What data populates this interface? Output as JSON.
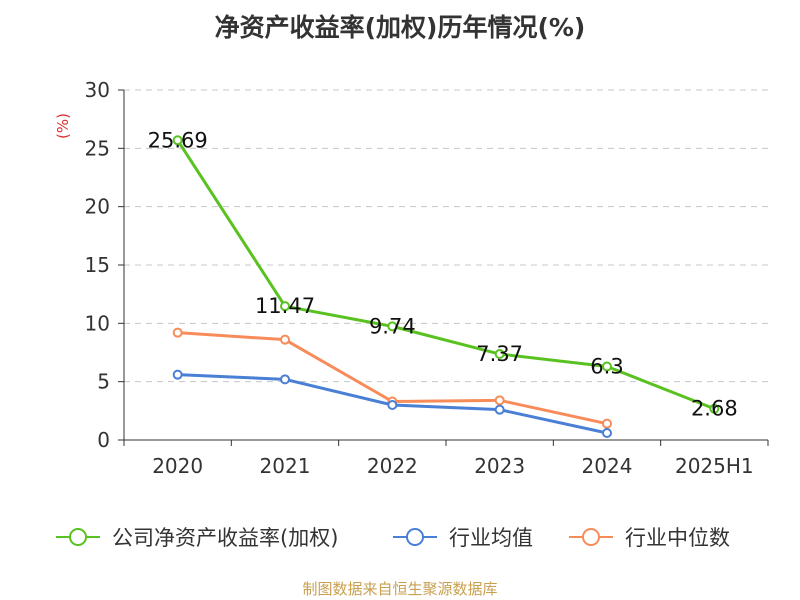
{
  "chart_data": {
    "type": "line",
    "title": "净资产收益率(加权)历年情况(%)",
    "ylabel": "(%)",
    "categories": [
      "2020",
      "2021",
      "2022",
      "2023",
      "2024",
      "2025H1"
    ],
    "ylim": [
      0,
      30
    ],
    "yticks": [
      "0",
      "5",
      "10",
      "15",
      "20",
      "25",
      "30"
    ],
    "grid": true,
    "legend_position": "bottom",
    "series": [
      {
        "name": "公司净资产收益率(加权)",
        "color": "#5ac220",
        "values": [
          25.69,
          11.47,
          9.74,
          7.37,
          6.3,
          2.68
        ],
        "labels": [
          "25.69",
          "11.47",
          "9.74",
          "7.37",
          "6.3",
          "2.68"
        ]
      },
      {
        "name": "行业均值",
        "color": "#4a7fd6",
        "values": [
          5.6,
          5.2,
          3.0,
          2.6,
          0.6,
          null
        ]
      },
      {
        "name": "行业中位数",
        "color": "#f78c5a",
        "values": [
          9.2,
          8.6,
          3.3,
          3.4,
          1.4,
          null
        ]
      }
    ]
  },
  "source_text": "制图数据来自恒生聚源数据库"
}
